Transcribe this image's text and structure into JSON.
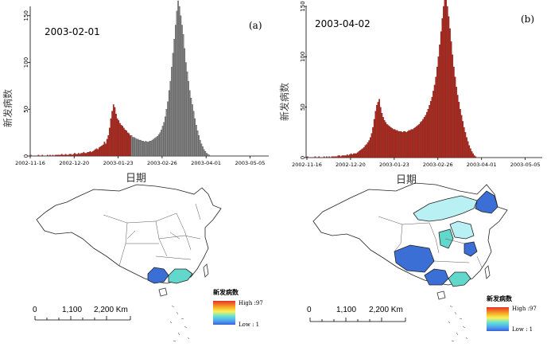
{
  "chart_data": [
    {
      "type": "bar",
      "panel_label": "(a)",
      "date_label": "2003-02-01",
      "ylabel": "新发病数",
      "xlabel": "日期",
      "ylim": [
        0,
        160
      ],
      "yticks": [
        "0",
        "50",
        "100",
        "150"
      ],
      "xticks": [
        "2002-11-16",
        "2002-12-20",
        "2003-01-23",
        "2003-02-26",
        "2003-04-01",
        "2003-05-05"
      ],
      "x_start": "2002-11-16",
      "highlight_until": "2003-02-01",
      "colors": {
        "before": "#b22a1e",
        "after": "#8a8a8a"
      },
      "values": [
        1,
        0,
        0,
        0,
        0,
        0,
        1,
        0,
        0,
        1,
        0,
        0,
        0,
        1,
        0,
        1,
        0,
        1,
        0,
        1,
        1,
        1,
        1,
        1,
        2,
        1,
        1,
        2,
        1,
        1,
        2,
        2,
        1,
        2,
        3,
        2,
        2,
        3,
        2,
        3,
        3,
        4,
        3,
        3,
        4,
        4,
        5,
        4,
        5,
        6,
        7,
        8,
        7,
        9,
        10,
        11,
        12,
        15,
        13,
        18,
        22,
        30,
        40,
        48,
        55,
        52,
        45,
        40,
        38,
        35,
        33,
        32,
        30,
        28,
        27,
        25,
        24,
        22,
        22,
        20,
        20,
        19,
        18,
        18,
        17,
        17,
        16,
        16,
        15,
        16,
        15,
        15,
        16,
        16,
        17,
        18,
        19,
        20,
        21,
        23,
        25,
        28,
        32,
        36,
        42,
        50,
        58,
        70,
        80,
        95,
        110,
        125,
        140,
        155,
        166,
        160,
        150,
        140,
        130,
        115,
        100,
        90,
        80,
        70,
        62,
        55,
        48,
        40,
        33,
        27,
        22,
        17,
        13,
        10,
        7,
        5,
        3,
        2,
        1
      ]
    },
    {
      "type": "bar",
      "panel_label": "(b)",
      "date_label": "2003-04-02",
      "ylabel": "新发病数",
      "xlabel": "日期",
      "ylim": [
        0,
        150
      ],
      "yticks": [
        "0",
        "50",
        "100",
        "150"
      ],
      "xticks": [
        "2002-11-16",
        "2002-12-20",
        "2003-01-23",
        "2003-02-26",
        "2003-04-01",
        "2003-05-05"
      ],
      "x_start": "2002-11-16",
      "highlight_until": "2003-04-02",
      "colors": {
        "before": "#b22a1e",
        "after": "#8a8a8a"
      },
      "values": [
        1,
        0,
        0,
        0,
        0,
        0,
        1,
        0,
        0,
        1,
        0,
        0,
        0,
        1,
        0,
        1,
        0,
        1,
        0,
        1,
        1,
        1,
        1,
        1,
        2,
        2,
        1,
        2,
        2,
        2,
        2,
        3,
        2,
        3,
        4,
        3,
        4,
        4,
        4,
        5,
        6,
        7,
        8,
        9,
        10,
        12,
        13,
        15,
        17,
        20,
        24,
        30,
        38,
        46,
        52,
        55,
        58,
        50,
        44,
        40,
        37,
        35,
        33,
        32,
        31,
        30,
        29,
        28,
        28,
        27,
        27,
        26,
        26,
        26,
        25,
        26,
        26,
        25,
        26,
        27,
        27,
        28,
        28,
        29,
        30,
        31,
        32,
        33,
        35,
        36,
        38,
        40,
        42,
        45,
        48,
        52,
        56,
        60,
        66,
        72,
        80,
        90,
        100,
        112,
        125,
        138,
        150,
        160,
        158,
        150,
        140,
        128,
        115,
        102,
        90,
        80,
        70,
        62,
        55,
        48,
        42,
        36,
        30,
        25,
        20,
        16,
        12,
        9,
        6,
        4,
        2,
        1
      ]
    }
  ],
  "maps": {
    "a": {
      "legend_title": "新发病数",
      "legend_high": "High :97",
      "legend_low": "Low : 1",
      "scale_labels": [
        "0",
        "1,100",
        "2,200 Km"
      ]
    },
    "b": {
      "legend_title": "新发病数",
      "legend_high": "High :97",
      "legend_low": "Low : 1",
      "scale_labels": [
        "0",
        "1,100",
        "2,200 Km"
      ]
    }
  }
}
